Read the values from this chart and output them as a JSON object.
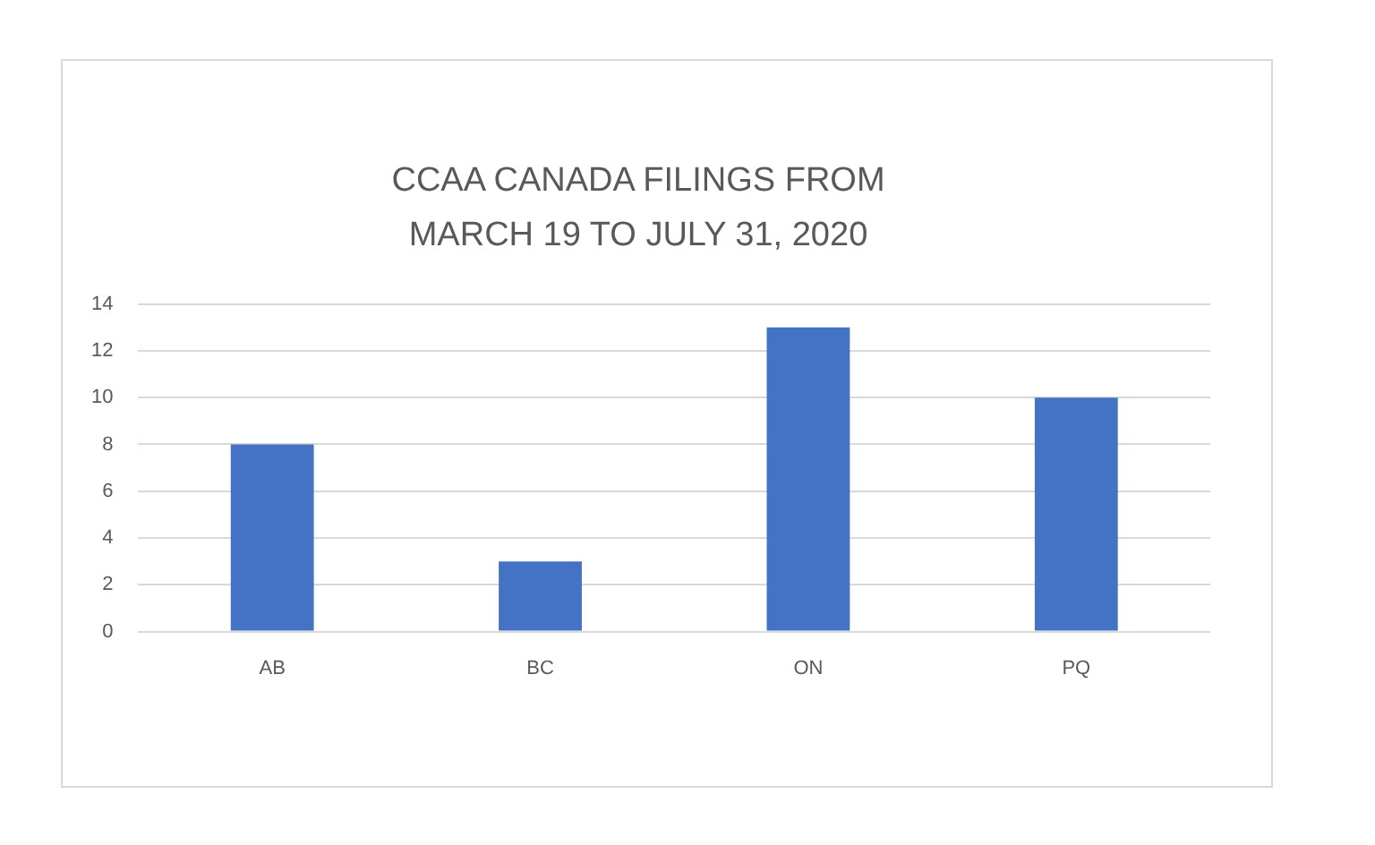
{
  "chart_data": {
    "type": "bar",
    "title": "CCAA CANADA FILINGS FROM MARCH 19 TO JULY 31, 2020",
    "categories": [
      "AB",
      "BC",
      "ON",
      "PQ"
    ],
    "values": [
      8,
      3,
      13,
      10
    ],
    "color": "#4472c4",
    "ylim": [
      0,
      14
    ],
    "yticks": [
      0,
      2,
      4,
      6,
      8,
      10,
      12,
      14
    ],
    "grid": "y",
    "legend": false
  }
}
